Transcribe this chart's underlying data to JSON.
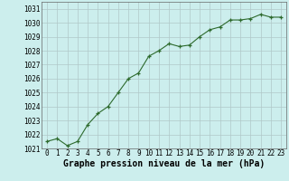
{
  "x": [
    0,
    1,
    2,
    3,
    4,
    5,
    6,
    7,
    8,
    9,
    10,
    11,
    12,
    13,
    14,
    15,
    16,
    17,
    18,
    19,
    20,
    21,
    22,
    23
  ],
  "y": [
    1021.5,
    1021.7,
    1021.2,
    1021.5,
    1022.7,
    1023.5,
    1024.0,
    1025.0,
    1026.0,
    1026.4,
    1027.6,
    1028.0,
    1028.5,
    1028.3,
    1028.4,
    1029.0,
    1029.5,
    1029.7,
    1030.2,
    1030.2,
    1030.3,
    1030.6,
    1030.4,
    1030.4
  ],
  "ylim": [
    1021.0,
    1031.5
  ],
  "yticks": [
    1021,
    1022,
    1023,
    1024,
    1025,
    1026,
    1027,
    1028,
    1029,
    1030,
    1031
  ],
  "xlabel": "Graphe pression niveau de la mer (hPa)",
  "line_color": "#2d6a2d",
  "marker_color": "#2d6a2d",
  "bg_color": "#cceeed",
  "grid_color": "#b0c8c8",
  "xlabel_fontsize": 7,
  "tick_fontsize": 5.5
}
